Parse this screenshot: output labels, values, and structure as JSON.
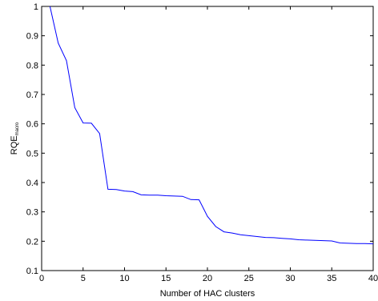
{
  "chart_data": {
    "type": "line",
    "title": "",
    "xlabel": "Number of HAC clusters",
    "ylabel": "RQE",
    "ylabel_subscript": "macro",
    "xlim": [
      0,
      40
    ],
    "ylim": [
      0.1,
      1
    ],
    "xticks": [
      "0",
      "5",
      "10",
      "15",
      "20",
      "25",
      "30",
      "35",
      "40"
    ],
    "yticks": [
      "0.1",
      "0.2",
      "0.3",
      "0.4",
      "0.5",
      "0.6",
      "0.7",
      "0.8",
      "0.9",
      "1"
    ],
    "grid": false,
    "line_color": "#0000ff",
    "series": [
      {
        "x": [
          1,
          2,
          3,
          4,
          5,
          6,
          7,
          8,
          9,
          10,
          11,
          12,
          13,
          14,
          15,
          16,
          17,
          18,
          19,
          20,
          21,
          22,
          23,
          24,
          25,
          26,
          27,
          28,
          29,
          30,
          31,
          32,
          33,
          34,
          35,
          36,
          37,
          38,
          39,
          40
        ],
        "values": [
          1.0,
          0.875,
          0.815,
          0.655,
          0.603,
          0.602,
          0.567,
          0.377,
          0.376,
          0.371,
          0.369,
          0.358,
          0.357,
          0.357,
          0.355,
          0.354,
          0.353,
          0.342,
          0.341,
          0.285,
          0.25,
          0.232,
          0.228,
          0.222,
          0.219,
          0.216,
          0.213,
          0.212,
          0.21,
          0.208,
          0.205,
          0.204,
          0.203,
          0.202,
          0.201,
          0.194,
          0.193,
          0.192,
          0.192,
          0.191
        ]
      }
    ]
  }
}
